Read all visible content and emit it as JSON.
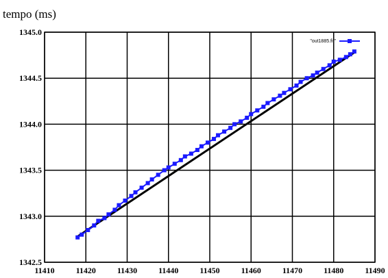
{
  "chart_data": {
    "type": "line",
    "title": "",
    "xlabel": "",
    "ylabel": "tempo (ms)",
    "xlim": [
      11410,
      11490
    ],
    "ylim": [
      1342.5,
      1345.0
    ],
    "x_ticks": [
      "11410",
      "11420",
      "11430",
      "11440",
      "11450",
      "11460",
      "11470",
      "11480",
      "11490"
    ],
    "y_ticks": [
      "1342.5",
      "1343.0",
      "1343.5",
      "1344.0",
      "1344.5",
      "1345.0"
    ],
    "grid": true,
    "legend_position": "top-right",
    "series": [
      {
        "name": "\"out1885.fit\"",
        "style": "linespoints",
        "color": "#1a1aff",
        "marker": "square",
        "x": [
          11418,
          11419,
          11420.5,
          11422,
          11423,
          11424.5,
          11425.5,
          11427,
          11428,
          11429.5,
          11431,
          11432,
          11433.5,
          11435,
          11436,
          11437.5,
          11439,
          11440,
          11441.5,
          11443,
          11444,
          11445.5,
          11447,
          11448,
          11449.5,
          11451,
          11452,
          11453.5,
          11455,
          11456,
          11457.5,
          11459,
          11460,
          11461.5,
          11463,
          11464,
          11465.5,
          11467,
          11468,
          11469.5,
          11471,
          11472,
          11473.5,
          11475,
          11476,
          11477.5,
          11479,
          11480,
          11481.5,
          11483,
          11484,
          11485
        ],
        "y": [
          1342.77,
          1342.8,
          1342.85,
          1342.9,
          1342.95,
          1342.98,
          1343.02,
          1343.07,
          1343.12,
          1343.17,
          1343.22,
          1343.26,
          1343.31,
          1343.36,
          1343.4,
          1343.45,
          1343.5,
          1343.53,
          1343.57,
          1343.61,
          1343.65,
          1343.68,
          1343.72,
          1343.76,
          1343.8,
          1343.84,
          1343.88,
          1343.92,
          1343.96,
          1344.0,
          1344.03,
          1344.07,
          1344.11,
          1344.15,
          1344.19,
          1344.23,
          1344.27,
          1344.31,
          1344.34,
          1344.38,
          1344.42,
          1344.46,
          1344.5,
          1344.53,
          1344.56,
          1344.6,
          1344.64,
          1344.68,
          1344.7,
          1344.73,
          1344.76,
          1344.79
        ]
      }
    ],
    "fit_line": {
      "color": "#000000",
      "x": [
        11418,
        11485
      ],
      "y": [
        1342.78,
        1344.78
      ]
    }
  }
}
